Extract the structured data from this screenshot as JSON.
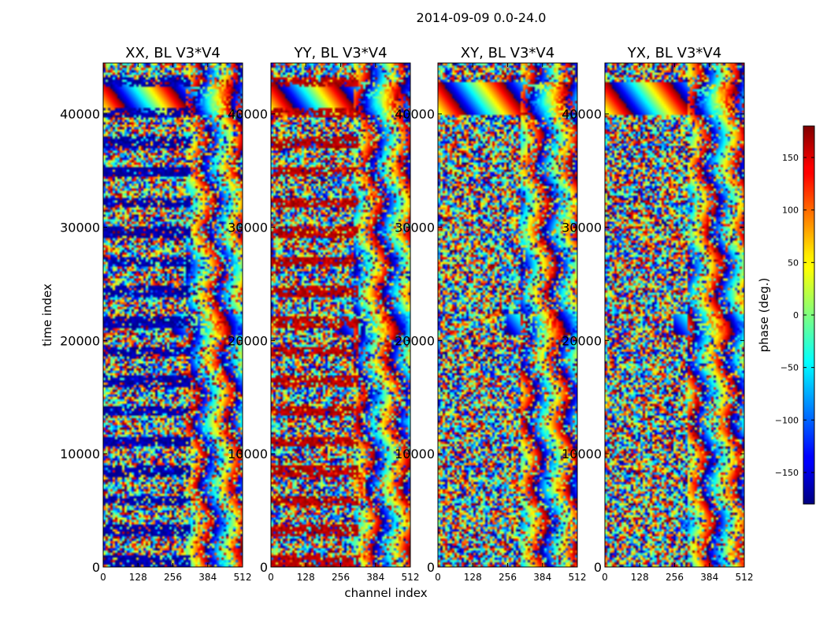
{
  "chart_data": {
    "type": "heatmap",
    "title": "2014-09-09 0.0-24.0",
    "xlabel": "channel index",
    "ylabel": "time index",
    "xlim": [
      0,
      512
    ],
    "ylim": [
      0,
      44500
    ],
    "xticks": [
      0,
      128,
      256,
      384,
      512
    ],
    "yticks": [
      0,
      10000,
      20000,
      30000,
      40000
    ],
    "panels": [
      {
        "title": "XX, BL V3*V4",
        "bias": -165
      },
      {
        "title": "YY, BL V3*V4",
        "bias": 160
      },
      {
        "title": "XY, BL V3*V4",
        "bias": 0
      },
      {
        "title": "YX, BL V3*V4",
        "bias": 0
      }
    ],
    "colorbar": {
      "label": "phase (deg.)",
      "range": [
        -180,
        180
      ],
      "ticks": [
        150,
        100,
        50,
        0,
        -50,
        -100,
        -150
      ],
      "tick_labels": [
        "150",
        "100",
        "50",
        "0",
        "−50",
        "−100",
        "−150"
      ],
      "colormap": "jet"
    }
  }
}
